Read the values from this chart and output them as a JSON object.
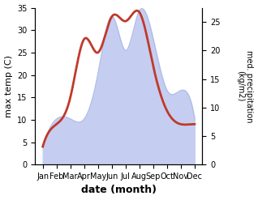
{
  "months": [
    "Jan",
    "Feb",
    "Mar",
    "Apr",
    "May",
    "Jun",
    "Jul",
    "Aug",
    "Sep",
    "Oct",
    "Nov",
    "Dec"
  ],
  "x_positions": [
    0,
    1,
    2,
    3,
    4,
    5,
    6,
    7,
    8,
    9,
    10,
    11
  ],
  "temperature": [
    4,
    9,
    15,
    28,
    25,
    33,
    32,
    34,
    22,
    12,
    9,
    9
  ],
  "precipitation": [
    3,
    8,
    8,
    8,
    16,
    26,
    20,
    27,
    22,
    13,
    13,
    8
  ],
  "temp_color": "#c0392b",
  "precip_fill_color": "#c5cef0",
  "precip_line_color": "#b0bce8",
  "temp_ylim": [
    0,
    35
  ],
  "precip_ylim": [
    0,
    27.5
  ],
  "left_ticks": [
    0,
    5,
    10,
    15,
    20,
    25,
    30,
    35
  ],
  "right_ticks": [
    0,
    5,
    10,
    15,
    20,
    25
  ],
  "ylabel_left": "max temp (C)",
  "ylabel_right": "med. precipitation\n(kg/m2)",
  "xlabel": "date (month)",
  "temp_linewidth": 2.0,
  "bg_color": "#ffffff"
}
